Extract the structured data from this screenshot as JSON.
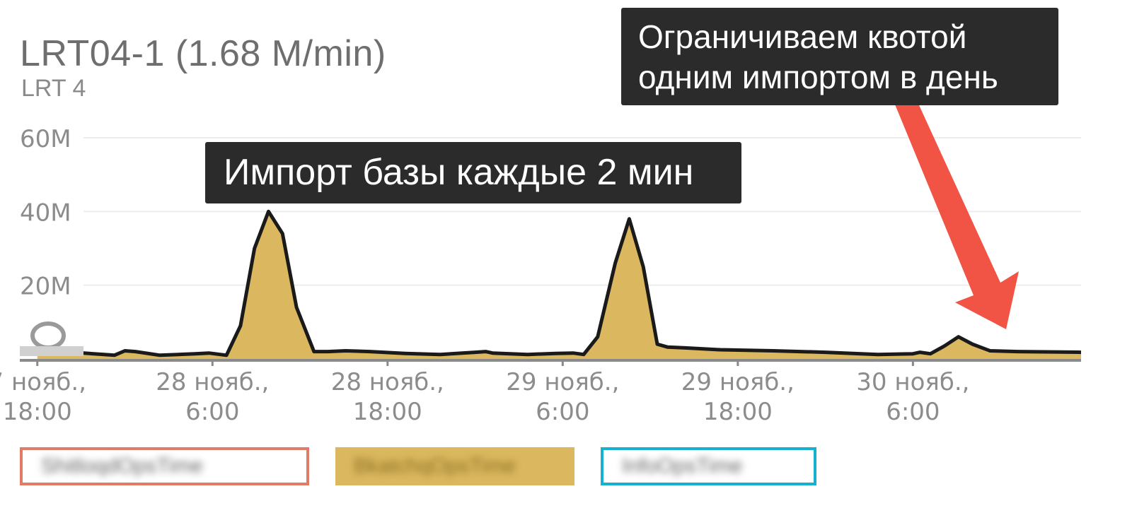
{
  "chart": {
    "title": "LRT04-1 (1.68 M/min)",
    "subtitle": "LRT 4",
    "annotations": {
      "import_every_2min": "Импорт базы каждые 2 мин",
      "quota_line1": "Ограничиваем квотой",
      "quota_line2": "одним импортом в день"
    },
    "legend": [
      "ShitloqdOpsTime",
      "BkatchqOpsTime",
      "InfoOpsTime"
    ]
  },
  "colors": {
    "area_fill": "#dbb85f",
    "series_line": "#1a1a1a",
    "arrow": "#f04a3a",
    "legend_red": "#e07b67",
    "legend_gold": "#dbb85f",
    "legend_cyan": "#16b0d0",
    "annotation_bg": "#2b2b2b",
    "tick_text": "#8c8c8c"
  },
  "chart_data": {
    "type": "area",
    "y_unit": "M",
    "ylim": [
      0,
      60
    ],
    "yticks": [
      {
        "value": 20,
        "label": "20M"
      },
      {
        "value": 40,
        "label": "40M"
      },
      {
        "value": 60,
        "label": "60M"
      }
    ],
    "xlim": [
      -0.05,
      2.98
    ],
    "xticks": [
      {
        "value": 0,
        "line1": "7 нояб.,",
        "line2": "18:00"
      },
      {
        "value": 0.5,
        "line1": "28 нояб.,",
        "line2": "6:00"
      },
      {
        "value": 1.0,
        "line1": "28 нояб.,",
        "line2": "18:00"
      },
      {
        "value": 1.5,
        "line1": "29 нояб.,",
        "line2": "6:00"
      },
      {
        "value": 2.0,
        "line1": "29 нояб.,",
        "line2": "18:00"
      },
      {
        "value": 2.5,
        "line1": "30 нояб.,",
        "line2": "6:00"
      }
    ],
    "grid": true,
    "legend_position": "bottom",
    "series": [
      {
        "color": "#dbb85f",
        "x": [
          0.0,
          0.1,
          0.22,
          0.25,
          0.28,
          0.35,
          0.45,
          0.49,
          0.54,
          0.58,
          0.62,
          0.66,
          0.7,
          0.74,
          0.79,
          0.83,
          0.88,
          0.95,
          1.05,
          1.15,
          1.25,
          1.28,
          1.3,
          1.4,
          1.48,
          1.53,
          1.56,
          1.6,
          1.65,
          1.69,
          1.73,
          1.77,
          1.8,
          1.85,
          1.95,
          2.1,
          2.25,
          2.4,
          2.5,
          2.52,
          2.55,
          2.59,
          2.63,
          2.67,
          2.72,
          2.8,
          2.9,
          2.98
        ],
        "y": [
          2,
          1.8,
          1,
          2.2,
          2,
          1,
          1.4,
          1.6,
          1,
          9,
          30,
          40,
          34,
          14,
          2,
          2,
          2.2,
          2,
          1.5,
          1.2,
          1.8,
          2,
          1.6,
          1.2,
          1.5,
          1.6,
          1.2,
          6,
          26,
          38,
          25,
          4,
          3.2,
          3,
          2.5,
          2.2,
          1.8,
          1.2,
          1.4,
          1.8,
          1.4,
          3.5,
          6,
          4,
          2.2,
          2,
          1.9,
          1.8
        ]
      }
    ]
  }
}
